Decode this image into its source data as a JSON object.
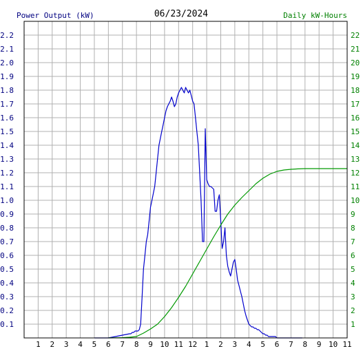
{
  "chart_data": {
    "type": "line",
    "title": "06/23/2024",
    "left_axis_label": "Power Output (kW)",
    "right_axis_label": "Daily kW-Hours",
    "x_tick_labels": [
      "1",
      "2",
      "3",
      "4",
      "5",
      "6",
      "7",
      "8",
      "9",
      "10",
      "11",
      "12",
      "1",
      "2",
      "3",
      "4",
      "5",
      "6",
      "7",
      "8",
      "9",
      "10",
      "11"
    ],
    "y_left_ticks": [
      "0.1",
      "0.2",
      "0.3",
      "0.4",
      "0.5",
      "0.6",
      "0.7",
      "0.8",
      "0.9",
      "1.0",
      "1.1",
      "1.2",
      "1.3",
      "1.4",
      "1.5",
      "1.6",
      "1.7",
      "1.8",
      "1.9",
      "2.0",
      "2.1",
      "2.2"
    ],
    "y_right_ticks": [
      "1",
      "2",
      "3",
      "4",
      "5",
      "6",
      "7",
      "8",
      "9",
      "10",
      "11",
      "12",
      "13",
      "14",
      "15",
      "16",
      "17",
      "18",
      "19",
      "20",
      "21",
      "22"
    ],
    "xlim": [
      0,
      23
    ],
    "ylim_left": [
      0,
      2.3
    ],
    "ylim_right": [
      0,
      23
    ],
    "grid": true,
    "colors": {
      "power": "#0000cc",
      "energy": "#009900",
      "left_text": "#000080",
      "right_text": "#008000",
      "title_text": "#000000",
      "grid": "#b0b0b0",
      "frame": "#000000"
    },
    "series": [
      {
        "name": "Power Output (kW)",
        "axis": "left",
        "x": [
          5.0,
          5.5,
          6.0,
          6.5,
          7.0,
          7.5,
          7.6,
          7.7,
          7.8,
          7.9,
          8.0,
          8.1,
          8.2,
          8.3,
          8.4,
          8.5,
          8.6,
          8.7,
          8.8,
          8.9,
          9.0,
          9.1,
          9.2,
          9.3,
          9.4,
          9.5,
          9.6,
          9.7,
          9.8,
          9.9,
          10.0,
          10.1,
          10.2,
          10.3,
          10.4,
          10.5,
          10.6,
          10.7,
          10.8,
          10.9,
          11.0,
          11.1,
          11.2,
          11.3,
          11.4,
          11.5,
          11.6,
          11.7,
          11.8,
          11.9,
          12.0,
          12.1,
          12.2,
          12.3,
          12.4,
          12.5,
          12.6,
          12.7,
          12.8,
          12.9,
          13.0,
          13.1,
          13.2,
          13.3,
          13.4,
          13.5,
          13.6,
          13.7,
          13.8,
          13.9,
          14.0,
          14.1,
          14.2,
          14.3,
          14.4,
          14.5,
          14.6,
          14.7,
          14.8,
          14.9,
          15.0,
          15.1,
          15.2,
          15.3,
          15.4,
          15.5,
          15.6,
          15.7,
          15.8,
          15.9,
          16.0,
          16.1,
          16.2,
          16.3,
          16.4,
          16.5,
          16.6,
          16.7,
          16.8,
          16.9,
          17.0,
          17.1,
          17.2,
          17.3,
          17.4,
          17.5,
          17.6,
          17.7,
          17.8,
          17.9,
          18.0,
          18.5,
          19.0,
          19.5,
          19.8
        ],
        "values": [
          0.0,
          0.0,
          0.0,
          0.01,
          0.02,
          0.03,
          0.03,
          0.04,
          0.04,
          0.05,
          0.05,
          0.05,
          0.06,
          0.1,
          0.3,
          0.5,
          0.6,
          0.7,
          0.75,
          0.85,
          0.95,
          1.0,
          1.05,
          1.1,
          1.2,
          1.3,
          1.4,
          1.45,
          1.5,
          1.55,
          1.6,
          1.65,
          1.68,
          1.7,
          1.72,
          1.75,
          1.72,
          1.68,
          1.7,
          1.75,
          1.78,
          1.8,
          1.82,
          1.8,
          1.78,
          1.82,
          1.8,
          1.78,
          1.8,
          1.76,
          1.72,
          1.7,
          1.6,
          1.5,
          1.4,
          1.2,
          1.0,
          0.7,
          0.7,
          1.52,
          1.15,
          1.12,
          1.1,
          1.1,
          1.09,
          1.08,
          0.92,
          0.92,
          1.0,
          1.04,
          0.85,
          0.65,
          0.7,
          0.8,
          0.6,
          0.52,
          0.48,
          0.45,
          0.5,
          0.55,
          0.57,
          0.5,
          0.42,
          0.38,
          0.34,
          0.3,
          0.25,
          0.2,
          0.16,
          0.13,
          0.1,
          0.09,
          0.08,
          0.08,
          0.07,
          0.07,
          0.06,
          0.06,
          0.05,
          0.04,
          0.03,
          0.03,
          0.02,
          0.02,
          0.01,
          0.01,
          0.01,
          0.01,
          0.01,
          0.01,
          0.0,
          0.0,
          0.0,
          0.0,
          0.0
        ]
      },
      {
        "name": "Daily kW-Hours",
        "axis": "right",
        "x": [
          6.0,
          7.0,
          7.5,
          8.0,
          8.5,
          9.0,
          9.5,
          10.0,
          10.5,
          11.0,
          11.5,
          12.0,
          12.5,
          13.0,
          13.5,
          14.0,
          14.5,
          15.0,
          15.5,
          16.0,
          16.5,
          17.0,
          17.5,
          18.0,
          18.5,
          19.0,
          19.5,
          20.0,
          21.0,
          22.0,
          23.0
        ],
        "values": [
          0.0,
          0.02,
          0.05,
          0.1,
          0.35,
          0.65,
          1.0,
          1.55,
          2.2,
          2.95,
          3.75,
          4.65,
          5.55,
          6.45,
          7.35,
          8.2,
          9.0,
          9.65,
          10.2,
          10.7,
          11.2,
          11.6,
          11.9,
          12.1,
          12.2,
          12.25,
          12.28,
          12.3,
          12.3,
          12.3,
          12.3
        ]
      }
    ]
  }
}
